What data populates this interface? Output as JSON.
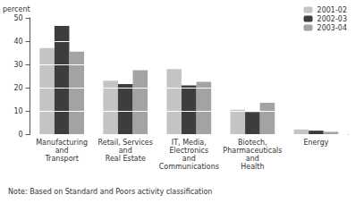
{
  "chart_data": {
    "type": "bar",
    "y_label": "percent",
    "note": "Note: Based on Standard and Poors activity classification",
    "categories": [
      "Manufacturing\nand\nTransport",
      "Retail, Services\nand\nReal Estate",
      "IT, Media,\nElectronics\nand\nCommunications",
      "Biotech,\nPharmaceuticals\nand\nHealth",
      "Energy"
    ],
    "series": [
      {
        "name": "2001-02",
        "color": "#c4c4c4",
        "values": [
          37,
          23,
          28,
          10.5,
          2
        ]
      },
      {
        "name": "2002-03",
        "color": "#3d3d3d",
        "values": [
          46.5,
          21.5,
          21,
          9.5,
          1.5
        ]
      },
      {
        "name": "2003-04",
        "color": "#a3a3a3",
        "values": [
          35.5,
          27.5,
          22.5,
          13.5,
          1
        ]
      }
    ],
    "ylim": [
      0,
      50
    ],
    "yticks": [
      0,
      10,
      20,
      30,
      40,
      50
    ],
    "grid": true,
    "legend": "top-right"
  }
}
